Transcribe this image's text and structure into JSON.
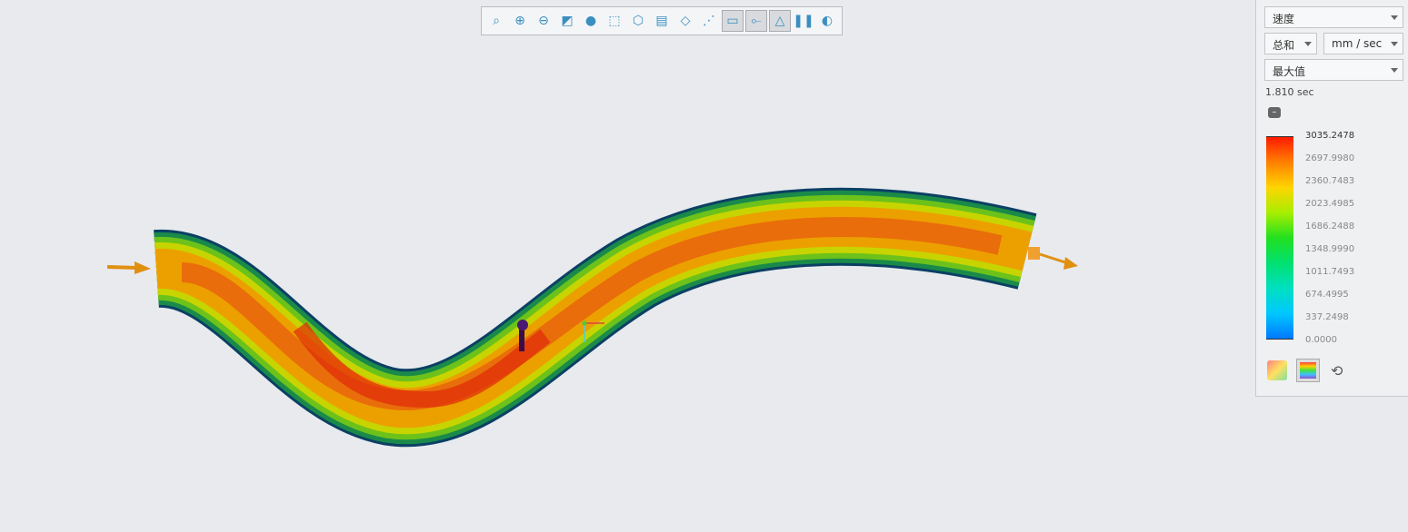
{
  "toolbar": {
    "buttons": [
      {
        "icon": "zoom-fit-icon",
        "glyph": "⌕"
      },
      {
        "icon": "zoom-in-icon",
        "glyph": "⊕"
      },
      {
        "icon": "zoom-out-icon",
        "glyph": "⊖"
      },
      {
        "icon": "zoom-window-icon",
        "glyph": "◩"
      },
      {
        "icon": "shading-icon",
        "glyph": "●"
      },
      {
        "icon": "wireframe-box-icon",
        "glyph": "⬚"
      },
      {
        "icon": "view-orientation-icon",
        "glyph": "⬡"
      },
      {
        "icon": "screenshot-icon",
        "glyph": "▤"
      },
      {
        "icon": "transparent-view-icon",
        "glyph": "◇"
      },
      {
        "icon": "coordinate-axes-icon",
        "glyph": "⋰"
      },
      {
        "icon": "display-options-icon",
        "glyph": "▭",
        "active": true
      },
      {
        "icon": "probe-points-icon",
        "glyph": "⟜",
        "active": true
      },
      {
        "icon": "result-plot-icon",
        "glyph": "△",
        "active": true
      },
      {
        "icon": "pause-icon",
        "glyph": "❚❚"
      },
      {
        "icon": "legend-colors-icon",
        "glyph": "◐"
      }
    ]
  },
  "panel": {
    "quantity": "速度",
    "component": "总和",
    "unit": "mm / sec",
    "mode": "最大值",
    "time": "1.810 sec",
    "legend": {
      "max": "3035.2478",
      "labels": [
        "3035.2478",
        "2697.9980",
        "2360.7483",
        "2023.4985",
        "1686.2488",
        "1348.9990",
        "1011.7493",
        "674.4995",
        "337.2498",
        "0.0000"
      ],
      "colors": [
        "#ff1a00",
        "#ff8000",
        "#ffd500",
        "#a8ee00",
        "#22e020",
        "#00e070",
        "#00e0c0",
        "#00c8ff",
        "#0078ff"
      ]
    }
  }
}
